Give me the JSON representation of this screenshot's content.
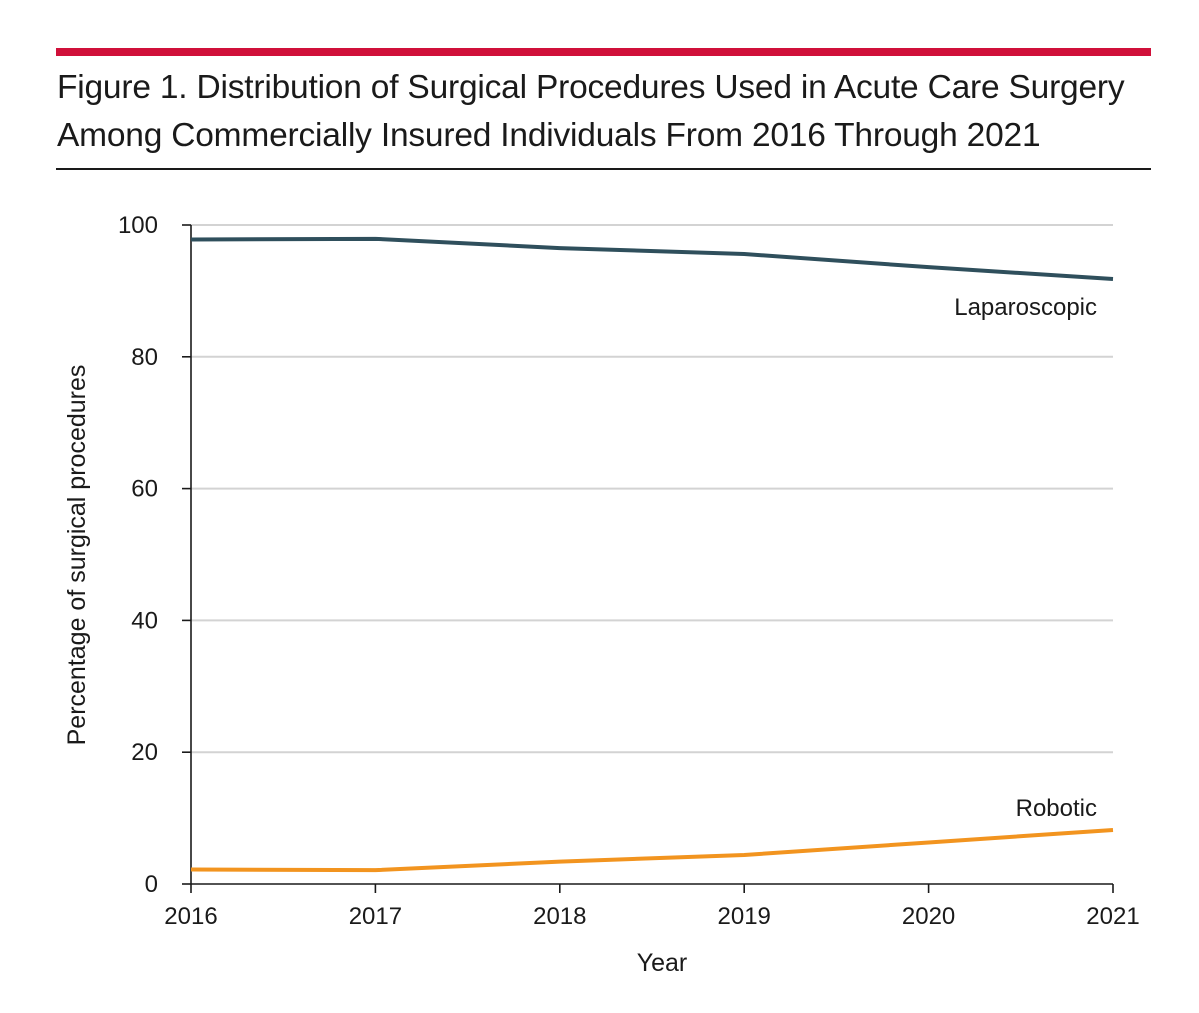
{
  "figure": {
    "title_line1": "Figure 1. Distribution of Surgical Procedures Used in Acute Care Surgery",
    "title_line2": "Among Commercially Insured Individuals From 2016 Through 2021"
  },
  "colors": {
    "accent": "#d0103a",
    "laparoscopic": "#2f4f5c",
    "robotic": "#f2941f",
    "grid": "#d3d3d3",
    "text": "#1a1a1a"
  },
  "chart_data": {
    "type": "line",
    "title": "Figure 1. Distribution of Surgical Procedures Used in Acute Care Surgery Among Commercially Insured Individuals From 2016 Through 2021",
    "xlabel": "Year",
    "ylabel": "Percentage of surgical procedures",
    "x": [
      2016,
      2017,
      2018,
      2019,
      2020,
      2021
    ],
    "xticks": [
      "2016",
      "2017",
      "2018",
      "2019",
      "2020",
      "2021"
    ],
    "yticks": [
      "0",
      "20",
      "40",
      "60",
      "80",
      "100"
    ],
    "ylim": [
      0,
      100
    ],
    "grid": true,
    "series": [
      {
        "name": "Laparoscopic",
        "label": "Laparoscopic",
        "color": "#2f4f5c",
        "values": [
          97.8,
          97.9,
          96.5,
          95.6,
          93.6,
          91.8
        ]
      },
      {
        "name": "Robotic",
        "label": "Robotic",
        "color": "#f2941f",
        "values": [
          2.2,
          2.1,
          3.4,
          4.4,
          6.3,
          8.2
        ]
      }
    ]
  }
}
